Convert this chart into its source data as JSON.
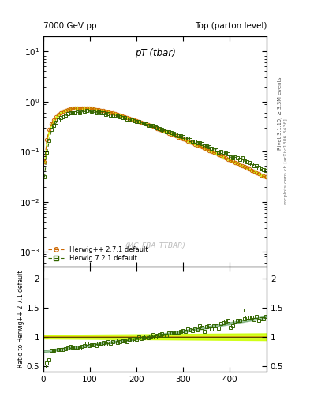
{
  "title_left": "7000 GeV pp",
  "title_right": "Top (parton level)",
  "main_title": "pT (tbar)",
  "ylabel_ratio": "Ratio to Herwig++ 2.7.1 default",
  "right_label_top": "Rivet 3.1.10, ≥ 3.3M events",
  "right_label_bottom": "mcplots.cern.ch [arXiv:1306.3436]",
  "watermark": "(MC_FBA_TTBAR)",
  "legend1": "Herwig++ 2.7.1 default",
  "legend2": "Herwig 7.2.1 default",
  "color1": "#cc6600",
  "color2": "#336600",
  "ylim_main": [
    0.0005,
    20
  ],
  "ylim_ratio": [
    0.4,
    2.2
  ],
  "xlim": [
    0,
    480
  ],
  "band_color": "#ccff00",
  "ratio_line_color": "#cc9900",
  "ratio_band2_color": "#006600"
}
